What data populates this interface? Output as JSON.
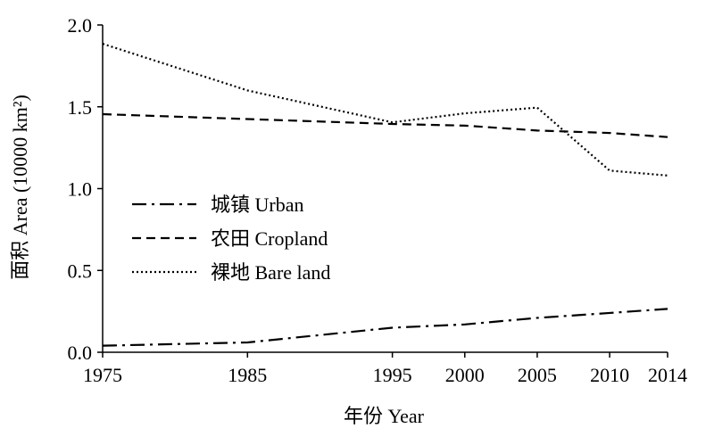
{
  "chart_data": {
    "type": "line",
    "x": [
      1975,
      1985,
      1995,
      2000,
      2005,
      2010,
      2014
    ],
    "x_tick_labels": [
      "1975",
      "1985",
      "1995",
      "2000",
      "2005",
      "2010",
      "2014"
    ],
    "xlabel": "年份 Year",
    "ylabel": "面积 Area (10000 km²)",
    "ylim": [
      0,
      2.0
    ],
    "y_ticks": [
      0,
      0.5,
      1.0,
      1.5,
      2.0
    ],
    "y_tick_labels": [
      "0.0",
      "0.5",
      "1.0",
      "1.5",
      "2.0"
    ],
    "grid": false,
    "legend_position": "center-left",
    "series": [
      {
        "name": "城镇 Urban",
        "dash": "dash-dot",
        "values": [
          0.04,
          0.06,
          0.15,
          0.17,
          0.21,
          0.24,
          0.265
        ]
      },
      {
        "name": "农田 Cropland",
        "dash": "dashed",
        "values": [
          1.455,
          1.425,
          1.395,
          1.385,
          1.355,
          1.34,
          1.315
        ]
      },
      {
        "name": "裸地 Bare land",
        "dash": "dotted",
        "values": [
          1.885,
          1.6,
          1.405,
          1.46,
          1.495,
          1.11,
          1.08
        ]
      }
    ],
    "colors": {
      "axis": "#000000",
      "series": "#000000"
    }
  }
}
